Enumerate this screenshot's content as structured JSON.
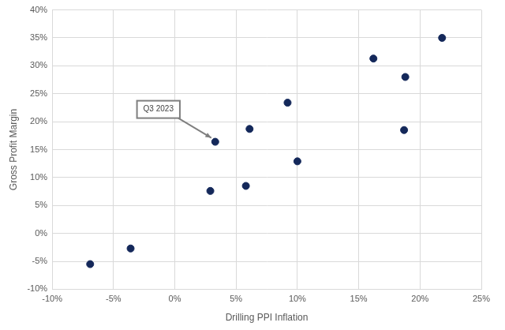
{
  "chart_data": {
    "type": "scatter",
    "x_label": "Drilling PPI Inflation",
    "y_label": "Gross Profit Margin",
    "x": [
      -6.9,
      -3.6,
      2.9,
      3.3,
      5.8,
      6.1,
      9.2,
      10.0,
      16.2,
      18.7,
      18.8,
      21.8
    ],
    "values": [
      -5.5,
      -2.7,
      7.6,
      16.4,
      8.5,
      18.7,
      23.4,
      12.9,
      31.3,
      18.5,
      28.0,
      35.0
    ],
    "color": "#14285a",
    "marker": "circle",
    "xlim": [
      -10,
      25
    ],
    "xticks": [
      {
        "value": -10,
        "label": "-10%"
      },
      {
        "value": -5,
        "label": "-5%"
      },
      {
        "value": 0,
        "label": "0%"
      },
      {
        "value": 5,
        "label": "5%"
      },
      {
        "value": 10,
        "label": "10%"
      },
      {
        "value": 15,
        "label": "15%"
      },
      {
        "value": 20,
        "label": "20%"
      },
      {
        "value": 25,
        "label": "25%"
      }
    ],
    "ylim": [
      -10,
      40
    ],
    "yticks": [
      {
        "value": -10,
        "label": "-10%"
      },
      {
        "value": -5,
        "label": "-5%"
      },
      {
        "value": 0,
        "label": "0%"
      },
      {
        "value": 5,
        "label": "5%"
      },
      {
        "value": 10,
        "label": "10%"
      },
      {
        "value": 15,
        "label": "15%"
      },
      {
        "value": 20,
        "label": "20%"
      },
      {
        "value": 25,
        "label": "25%"
      },
      {
        "value": 30,
        "label": "30%"
      },
      {
        "value": 35,
        "label": "35%"
      },
      {
        "value": 40,
        "label": "40%"
      }
    ],
    "grid": true,
    "annotations": [
      {
        "text": "Q3 2023",
        "x": 3.3,
        "y": 16.4
      }
    ]
  }
}
